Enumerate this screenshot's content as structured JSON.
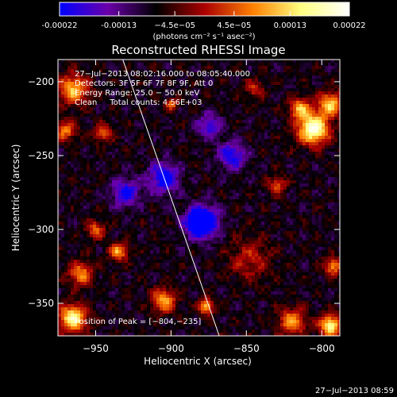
{
  "chart_data": {
    "type": "heatmap",
    "title": "Reconstructed RHESSI Image",
    "xlabel": "Heliocentric X (arcsec)",
    "ylabel": "Heliocentric Y (arcsec)",
    "xlim": [
      -975,
      -788
    ],
    "ylim": [
      -372,
      -185
    ],
    "x_ticks": [
      {
        "value": -950,
        "label": "−950"
      },
      {
        "value": -900,
        "label": "−900"
      },
      {
        "value": -850,
        "label": "−850"
      },
      {
        "value": -800,
        "label": "−800"
      }
    ],
    "y_ticks": [
      {
        "value": -200,
        "label": "−200"
      },
      {
        "value": -250,
        "label": "−250"
      },
      {
        "value": -300,
        "label": "−300"
      },
      {
        "value": -350,
        "label": "−350"
      }
    ],
    "colorbar": {
      "range": [
        -0.00022,
        0.00022
      ],
      "ticks": [
        {
          "value": -0.00022,
          "label": "-0.00022"
        },
        {
          "value": -0.00013,
          "label": "-0.00013"
        },
        {
          "value": -4.5e-05,
          "label": "−4.5e−05"
        },
        {
          "value": 4.5e-05,
          "label": "4.5e−05"
        },
        {
          "value": 0.00013,
          "label": "0.00013"
        },
        {
          "value": 0.00022,
          "label": "0.00022"
        }
      ],
      "unit_label": "(photons cm⁻² s⁻¹ asec⁻²)",
      "colors": [
        "#0000ff",
        "#6a00aa",
        "#000000",
        "#aa0000",
        "#ff8000",
        "#ffff80",
        "#ffffff"
      ]
    },
    "annotations": [
      "27−Jul−2013 08:02:16.000 to 08:05:40.000",
      "Detectors: 3F 5F 6F 7F 8F 9F, Att 0",
      "Energy Range: 25.0 − 50.0 keV",
      "Clean     Total counts: 4.56E+03"
    ],
    "peak_label": "Position of Peak = [−804,−235]",
    "peak": {
      "x": -804,
      "y": -235
    },
    "limb_line": [
      {
        "x": -932,
        "y": -185
      },
      {
        "x": -868,
        "y": -372
      }
    ],
    "grid": false,
    "features": [
      {
        "x": -848,
        "y": -320,
        "v": 0.3,
        "s": 14
      },
      {
        "x": -806,
        "y": -232,
        "v": 1.0,
        "s": 10
      },
      {
        "x": -795,
        "y": -215,
        "v": 0.7,
        "s": 8
      },
      {
        "x": -815,
        "y": -218,
        "v": 0.6,
        "s": 7
      },
      {
        "x": -965,
        "y": -205,
        "v": 0.65,
        "s": 10
      },
      {
        "x": -970,
        "y": -233,
        "v": 0.5,
        "s": 7
      },
      {
        "x": -945,
        "y": -235,
        "v": 0.45,
        "s": 6
      },
      {
        "x": -960,
        "y": -330,
        "v": 0.55,
        "s": 8
      },
      {
        "x": -935,
        "y": -315,
        "v": 0.6,
        "s": 6
      },
      {
        "x": -950,
        "y": -300,
        "v": 0.45,
        "s": 6
      },
      {
        "x": -965,
        "y": -360,
        "v": 0.85,
        "s": 9
      },
      {
        "x": -905,
        "y": -348,
        "v": 0.6,
        "s": 8
      },
      {
        "x": -877,
        "y": -352,
        "v": 0.7,
        "s": 5
      },
      {
        "x": -820,
        "y": -362,
        "v": 0.55,
        "s": 9
      },
      {
        "x": -795,
        "y": -365,
        "v": 0.85,
        "s": 7
      },
      {
        "x": -793,
        "y": -325,
        "v": 0.55,
        "s": 6
      },
      {
        "x": -830,
        "y": -270,
        "v": 0.4,
        "s": 6
      },
      {
        "x": -845,
        "y": -205,
        "v": 0.35,
        "s": 6
      },
      {
        "x": -900,
        "y": -215,
        "v": 0.5,
        "s": 4
      },
      {
        "x": -880,
        "y": -295,
        "v": -1.0,
        "s": 10
      },
      {
        "x": -905,
        "y": -265,
        "v": -0.55,
        "s": 10
      },
      {
        "x": -860,
        "y": -250,
        "v": -0.5,
        "s": 9
      },
      {
        "x": -930,
        "y": -275,
        "v": -0.5,
        "s": 9
      },
      {
        "x": -875,
        "y": -230,
        "v": -0.4,
        "s": 8
      }
    ]
  },
  "timestamp": "27−Jul−2013 08:59"
}
